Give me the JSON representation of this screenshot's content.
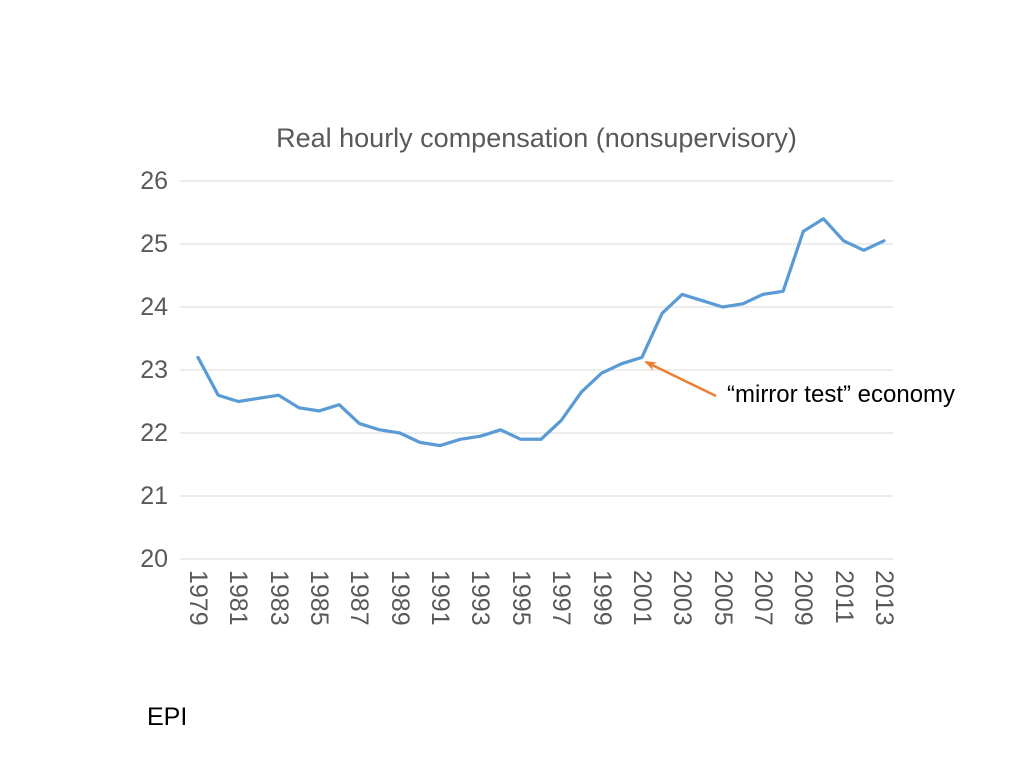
{
  "title": "Real hourly compensation (nonsupervisory)",
  "source_label": "EPI",
  "annotation": {
    "text": "“mirror test” economy",
    "points_at_year": 2001
  },
  "colors": {
    "line": "#5B9BD5",
    "arrow": "#ED7D31",
    "grid": "#D9D9D9",
    "axis_text": "#595959",
    "title_text": "#595959",
    "annotation_text": "#000000"
  },
  "chart_data": {
    "type": "line",
    "title": "Real hourly compensation (nonsupervisory)",
    "x": [
      1979,
      1980,
      1981,
      1982,
      1983,
      1984,
      1985,
      1986,
      1987,
      1988,
      1989,
      1990,
      1991,
      1992,
      1993,
      1994,
      1995,
      1996,
      1997,
      1998,
      1999,
      2000,
      2001,
      2002,
      2003,
      2004,
      2005,
      2006,
      2007,
      2008,
      2009,
      2010,
      2011,
      2012,
      2013
    ],
    "series": [
      {
        "name": "Real hourly compensation (nonsupervisory)",
        "values": [
          23.2,
          22.6,
          22.5,
          22.55,
          22.6,
          22.4,
          22.35,
          22.45,
          22.15,
          22.05,
          22.0,
          21.85,
          21.8,
          21.9,
          21.95,
          22.05,
          21.9,
          21.9,
          22.2,
          22.65,
          22.95,
          23.1,
          23.2,
          23.9,
          24.2,
          24.1,
          24.0,
          24.05,
          24.2,
          24.25,
          25.2,
          25.4,
          25.05,
          24.9,
          25.05
        ]
      }
    ],
    "xlabel": "",
    "ylabel": "",
    "ylim": [
      20,
      26
    ],
    "yticks": [
      20,
      21,
      22,
      23,
      24,
      25,
      26
    ],
    "xtick_labels": [
      "1979",
      "1981",
      "1983",
      "1985",
      "1987",
      "1989",
      "1991",
      "1993",
      "1995",
      "1997",
      "1999",
      "2001",
      "2003",
      "2005",
      "2007",
      "2009",
      "2011",
      "2013"
    ],
    "grid": "horizontal",
    "legend": "none"
  }
}
